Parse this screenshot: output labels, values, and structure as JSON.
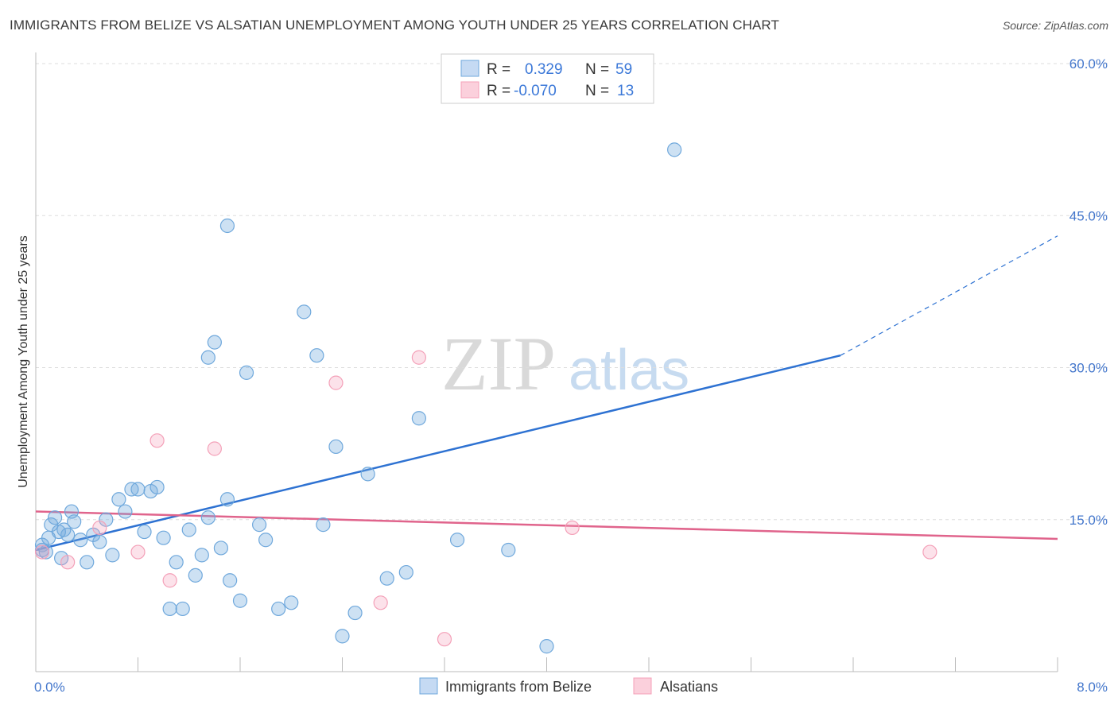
{
  "title": "IMMIGRANTS FROM BELIZE VS ALSATIAN UNEMPLOYMENT AMONG YOUTH UNDER 25 YEARS CORRELATION CHART",
  "source": "Source: ZipAtlas.com",
  "watermark": {
    "zip": "ZIP",
    "atlas": "atlas"
  },
  "colors": {
    "blue": "#6fa8dc",
    "blue_line": "#2e72d2",
    "pink": "#f4a0b8",
    "pink_line": "#e0648c"
  },
  "legend": {
    "rows": [
      {
        "r_label": "R =",
        "r_value": "0.329",
        "n_label": "N =",
        "n_value": "59"
      },
      {
        "r_label": "R =",
        "r_value": "-0.070",
        "n_label": "N =",
        "n_value": "13"
      }
    ]
  },
  "chart_data": {
    "type": "scatter",
    "title": "IMMIGRANTS FROM BELIZE VS ALSATIAN UNEMPLOYMENT AMONG YOUTH UNDER 25 YEARS CORRELATION CHART",
    "xlabel": "",
    "ylabel": "Unemployment Among Youth under 25 years",
    "xlim": [
      0,
      8
    ],
    "ylim": [
      0,
      60
    ],
    "x_tick_labels": [
      "0.0%",
      "8.0%"
    ],
    "y_tick_labels": [
      "15.0%",
      "30.0%",
      "45.0%",
      "60.0%"
    ],
    "y_ticks": [
      15,
      30,
      45,
      60
    ],
    "series": [
      {
        "name": "Immigrants from Belize",
        "color": "#6fa8dc",
        "points": [
          [
            0.05,
            12.5
          ],
          [
            0.08,
            11.8
          ],
          [
            0.1,
            13.2
          ],
          [
            0.12,
            14.5
          ],
          [
            0.15,
            15.2
          ],
          [
            0.18,
            13.8
          ],
          [
            0.2,
            11.2
          ],
          [
            0.22,
            14.0
          ],
          [
            0.25,
            13.5
          ],
          [
            0.28,
            15.8
          ],
          [
            0.3,
            14.8
          ],
          [
            0.35,
            13.0
          ],
          [
            0.4,
            10.8
          ],
          [
            0.45,
            13.5
          ],
          [
            0.5,
            12.8
          ],
          [
            0.55,
            15.0
          ],
          [
            0.6,
            11.5
          ],
          [
            0.65,
            17.0
          ],
          [
            0.7,
            15.8
          ],
          [
            0.75,
            18.0
          ],
          [
            0.8,
            18.0
          ],
          [
            0.85,
            13.8
          ],
          [
            0.9,
            17.8
          ],
          [
            0.95,
            18.2
          ],
          [
            1.0,
            13.2
          ],
          [
            1.05,
            6.2
          ],
          [
            1.1,
            10.8
          ],
          [
            1.15,
            6.2
          ],
          [
            1.2,
            14.0
          ],
          [
            1.25,
            9.5
          ],
          [
            1.3,
            11.5
          ],
          [
            1.35,
            15.2
          ],
          [
            1.4,
            32.5
          ],
          [
            1.45,
            12.2
          ],
          [
            1.5,
            17.0
          ],
          [
            1.52,
            9.0
          ],
          [
            1.6,
            7.0
          ],
          [
            1.65,
            29.5
          ],
          [
            1.75,
            14.5
          ],
          [
            1.8,
            13.0
          ],
          [
            1.9,
            6.2
          ],
          [
            2.0,
            6.8
          ],
          [
            2.1,
            35.5
          ],
          [
            2.2,
            31.2
          ],
          [
            2.25,
            14.5
          ],
          [
            2.35,
            22.2
          ],
          [
            2.4,
            3.5
          ],
          [
            2.5,
            5.8
          ],
          [
            2.6,
            19.5
          ],
          [
            2.75,
            9.2
          ],
          [
            2.9,
            9.8
          ],
          [
            3.0,
            25.0
          ],
          [
            3.3,
            13.0
          ],
          [
            3.7,
            12.0
          ],
          [
            4.0,
            2.5
          ],
          [
            1.35,
            31.0
          ],
          [
            1.5,
            44.0
          ],
          [
            5.0,
            51.5
          ],
          [
            0.05,
            12.0
          ]
        ]
      },
      {
        "name": "Alsatians",
        "color": "#f4a0b8",
        "points": [
          [
            0.05,
            11.8
          ],
          [
            0.25,
            10.8
          ],
          [
            0.5,
            14.2
          ],
          [
            0.8,
            11.8
          ],
          [
            0.95,
            22.8
          ],
          [
            1.05,
            9.0
          ],
          [
            1.4,
            22.0
          ],
          [
            2.35,
            28.5
          ],
          [
            2.7,
            6.8
          ],
          [
            3.0,
            31.0
          ],
          [
            3.2,
            3.2
          ],
          [
            4.2,
            14.2
          ],
          [
            7.0,
            11.8
          ]
        ]
      }
    ],
    "trendlines": [
      {
        "series": "Immigrants from Belize",
        "x": [
          0,
          6.3
        ],
        "y": [
          12.0,
          31.2
        ],
        "dashed_x": [
          6.3,
          8.0
        ],
        "dashed_y": [
          31.2,
          43.0
        ]
      },
      {
        "series": "Alsatians",
        "x": [
          0,
          8.0
        ],
        "y": [
          15.8,
          13.1
        ]
      }
    ],
    "legend_position": "top-center",
    "grid": true
  }
}
